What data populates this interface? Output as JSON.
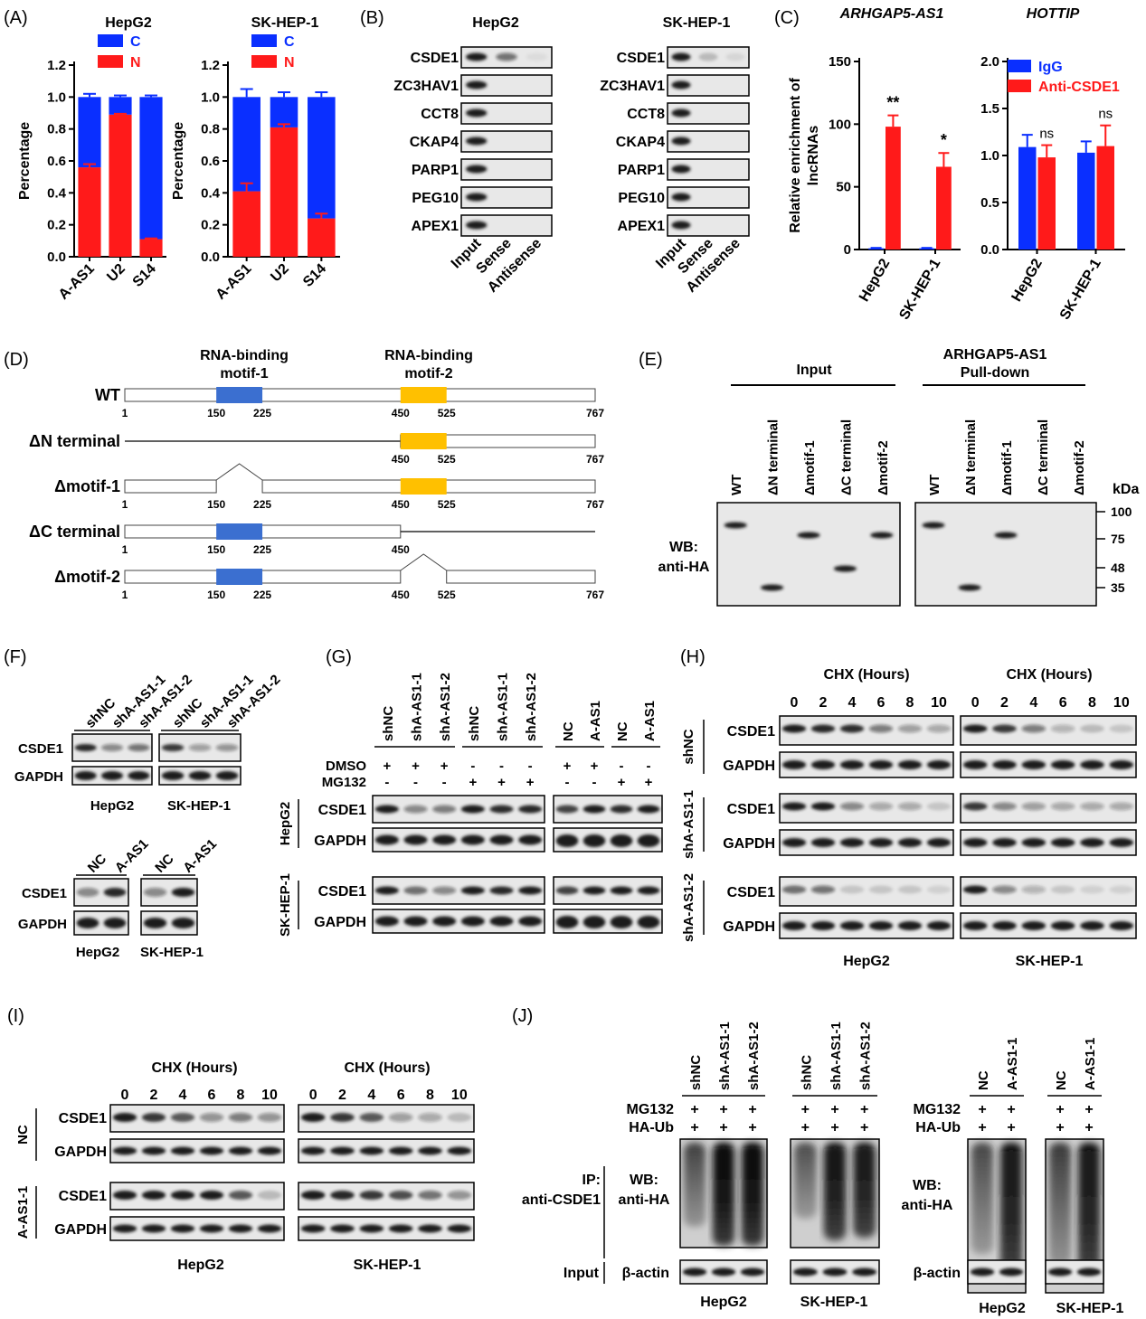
{
  "panels": [
    "(A)",
    "(B)",
    "(C)",
    "(D)",
    "(E)",
    "(F)",
    "(G)",
    "(H)",
    "(I)",
    "(J)"
  ],
  "colors": {
    "cytoplasm": "#0a2fff",
    "nucleus": "#ff1a1a",
    "igg": "#0a2fff",
    "anti": "#ff1a1a",
    "motif1": "#3b6fd0",
    "motif2": "#ffc000",
    "blot_bg": "#e8e8e8",
    "band": "#1a1a1a"
  },
  "panelA": {
    "ylabel": "Percentage",
    "categories": [
      "A-AS1",
      "U2",
      "S14"
    ],
    "legend": [
      "C",
      "N"
    ],
    "yticks": [
      "0.0",
      "0.2",
      "0.4",
      "0.6",
      "0.8",
      "1.0",
      "1.2"
    ],
    "charts": [
      {
        "title": "HepG2",
        "chart_data": {
          "type": "bar",
          "stacked": true,
          "categories": [
            "A-AS1",
            "U2",
            "S14"
          ],
          "series": [
            {
              "name": "N",
              "values": [
                0.56,
                0.89,
                0.11
              ]
            },
            {
              "name": "C",
              "values": [
                0.44,
                0.11,
                0.89
              ]
            }
          ],
          "ylim": [
            0,
            1.2
          ],
          "ylabel": "Percentage"
        }
      },
      {
        "title": "SK-HEP-1",
        "chart_data": {
          "type": "bar",
          "stacked": true,
          "categories": [
            "A-AS1",
            "U2",
            "S14"
          ],
          "series": [
            {
              "name": "N",
              "values": [
                0.41,
                0.81,
                0.24
              ]
            },
            {
              "name": "C",
              "values": [
                0.59,
                0.19,
                0.76
              ]
            }
          ],
          "ylim": [
            0,
            1.2
          ],
          "ylabel": "Percentage"
        }
      }
    ]
  },
  "chart_data": [
    {
      "type": "bar",
      "title": "HepG2",
      "categories": [
        "A-AS1",
        "U2",
        "S14"
      ],
      "series": [
        {
          "name": "N",
          "values": [
            0.56,
            0.89,
            0.11
          ]
        },
        {
          "name": "C",
          "values": [
            0.44,
            0.11,
            0.89
          ]
        }
      ],
      "ylim": [
        0,
        1.2
      ],
      "ylabel": "Percentage"
    },
    {
      "type": "bar",
      "title": "SK-HEP-1",
      "categories": [
        "A-AS1",
        "U2",
        "S14"
      ],
      "series": [
        {
          "name": "N",
          "values": [
            0.41,
            0.81,
            0.24
          ]
        },
        {
          "name": "C",
          "values": [
            0.59,
            0.19,
            0.76
          ]
        }
      ],
      "ylim": [
        0,
        1.2
      ],
      "ylabel": "Percentage"
    },
    {
      "type": "bar",
      "title": "ARHGAP5-AS1",
      "categories": [
        "HepG2",
        "SK-HEP-1"
      ],
      "series": [
        {
          "name": "IgG",
          "values": [
            1,
            1
          ]
        },
        {
          "name": "Anti-CSDE1",
          "values": [
            98,
            66
          ]
        }
      ],
      "ylim": [
        0,
        150
      ],
      "ylabel": "Relative enrichment of lncRNAs"
    },
    {
      "type": "bar",
      "title": "HOTTIP",
      "categories": [
        "HepG2",
        "SK-HEP-1"
      ],
      "series": [
        {
          "name": "IgG",
          "values": [
            1.09,
            1.03
          ]
        },
        {
          "name": "Anti-CSDE1",
          "values": [
            0.98,
            1.1
          ]
        }
      ],
      "ylim": [
        0,
        2.0
      ],
      "ylabel": "Relative enrichment of lncRNAs"
    }
  ],
  "panelB": {
    "cells": [
      "HepG2",
      "SK-HEP-1"
    ],
    "rows": [
      "CSDE1",
      "ZC3HAV1",
      "CCT8",
      "CKAP4",
      "PARP1",
      "PEG10",
      "APEX1"
    ],
    "lanes": [
      "Input",
      "Sense",
      "Antisense"
    ]
  },
  "panelC": {
    "titles": [
      "ARHGAP5-AS1",
      "HOTTIP"
    ],
    "ylabel_lines": [
      "Relative enrichment of",
      "lncRNAs"
    ],
    "categories": [
      "HepG2",
      "SK-HEP-1"
    ],
    "legend": [
      "IgG",
      "Anti-CSDE1"
    ],
    "yticks1": [
      "0",
      "50",
      "100",
      "150"
    ],
    "yticks2": [
      "0.0",
      "0.5",
      "1.0",
      "1.5",
      "2.0"
    ],
    "sig1": [
      "**",
      "*"
    ],
    "sig2": [
      "ns",
      "ns"
    ]
  },
  "panelD": {
    "motif1": [
      "RNA-binding",
      "motif-1"
    ],
    "motif2": [
      "RNA-binding",
      "motif-2"
    ],
    "constructs": [
      "WT",
      "ΔN terminal",
      "Δmotif-1",
      "ΔC terminal",
      "Δmotif-2"
    ],
    "nums": {
      "n1": "1",
      "n150": "150",
      "n225": "225",
      "n450": "450",
      "n525": "525",
      "n767": "767"
    }
  },
  "panelE": {
    "input": "Input",
    "pull": [
      "ARHGAP5-AS1",
      "Pull-down"
    ],
    "lanes": [
      "WT",
      "ΔN terminal",
      "Δmotif-1",
      "ΔC terminal",
      "Δmotif-2"
    ],
    "wb": [
      "WB:",
      "anti-HA"
    ],
    "kda": "kDa",
    "markers": [
      "100",
      "75",
      "48",
      "35"
    ]
  },
  "panelF": {
    "lanes_kd": [
      "shNC",
      "shA-AS1-1",
      "shA-AS1-2"
    ],
    "lanes_oe": [
      "NC",
      "A-AS1"
    ],
    "rows": [
      "CSDE1",
      "GAPDH"
    ],
    "cells": [
      "HepG2",
      "SK-HEP-1"
    ]
  },
  "panelG": {
    "lanes_kd": [
      "shNC",
      "shA-AS1-1",
      "shA-AS1-2"
    ],
    "lanes_oe": [
      "NC",
      "A-AS1"
    ],
    "treat": [
      "DMSO",
      "MG132"
    ],
    "plus": "+",
    "minus": "-",
    "rows": [
      "CSDE1",
      "GAPDH"
    ],
    "cells": [
      "HepG2",
      "SK-HEP-1"
    ]
  },
  "panelH": {
    "chx": "CHX (Hours)",
    "times": [
      "0",
      "2",
      "4",
      "6",
      "8",
      "10"
    ],
    "groups": [
      "shNC",
      "shA-AS1-1",
      "shA-AS1-2"
    ],
    "rows": [
      "CSDE1",
      "GAPDH"
    ],
    "cells": [
      "HepG2",
      "SK-HEP-1"
    ]
  },
  "panelI": {
    "chx": "CHX (Hours)",
    "times": [
      "0",
      "2",
      "4",
      "6",
      "8",
      "10"
    ],
    "groups": [
      "NC",
      "A-AS1-1"
    ],
    "rows": [
      "CSDE1",
      "GAPDH"
    ],
    "cells": [
      "HepG2",
      "SK-HEP-1"
    ]
  },
  "panelJ": {
    "lanes_kd": [
      "shNC",
      "shA-AS1-1",
      "shA-AS1-2"
    ],
    "lanes_oe": [
      "NC",
      "A-AS1-1"
    ],
    "treat": [
      "MG132",
      "HA-Ub"
    ],
    "plus": "+",
    "ip": [
      "IP:",
      "anti-CSDE1"
    ],
    "wb": [
      "WB:",
      "anti-HA"
    ],
    "input": "Input",
    "actin": "β-actin",
    "cells": [
      "HepG2",
      "SK-HEP-1"
    ]
  }
}
